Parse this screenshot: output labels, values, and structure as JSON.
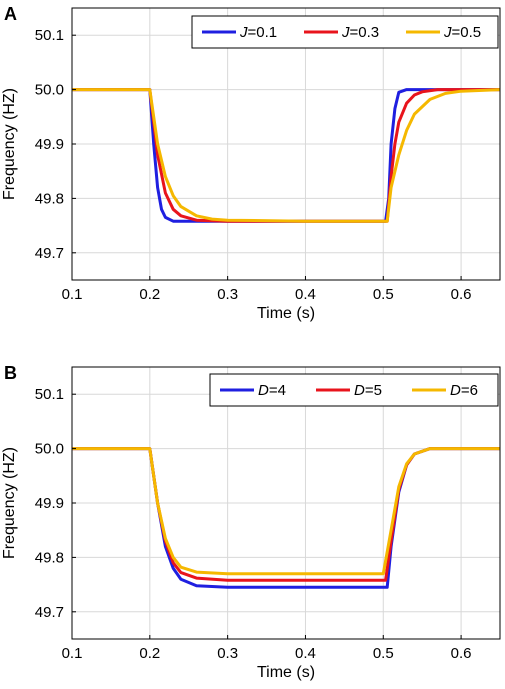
{
  "chart_data": [
    {
      "panel_label": "A",
      "type": "line",
      "xlabel": "Time (s)",
      "ylabel": "Frequency (HZ)",
      "xlim": [
        0.1,
        0.65
      ],
      "ylim": [
        49.65,
        50.15
      ],
      "xticks": [
        "0.1",
        "0.2",
        "0.3",
        "0.4",
        "0.5",
        "0.6"
      ],
      "yticks": [
        "49.7",
        "49.8",
        "49.9",
        "50.0",
        "50.1"
      ],
      "grid": true,
      "legend_position": "top-right",
      "series": [
        {
          "var": "J",
          "value": "=0.1",
          "color": "#1f1fe0",
          "x": [
            0.1,
            0.2,
            0.205,
            0.21,
            0.215,
            0.22,
            0.23,
            0.25,
            0.3,
            0.4,
            0.503,
            0.507,
            0.51,
            0.515,
            0.52,
            0.53,
            0.55,
            0.6,
            0.65
          ],
          "y": [
            50.0,
            50.0,
            49.9,
            49.82,
            49.78,
            49.765,
            49.758,
            49.758,
            49.758,
            49.758,
            49.758,
            49.8,
            49.9,
            49.965,
            49.995,
            50.0,
            50.0,
            50.0,
            50.0
          ]
        },
        {
          "var": "J",
          "value": "=0.3",
          "color": "#e8141c",
          "x": [
            0.1,
            0.2,
            0.205,
            0.21,
            0.22,
            0.23,
            0.24,
            0.26,
            0.3,
            0.4,
            0.505,
            0.51,
            0.515,
            0.52,
            0.53,
            0.54,
            0.55,
            0.57,
            0.6,
            0.65
          ],
          "y": [
            50.0,
            50.0,
            49.94,
            49.88,
            49.81,
            49.78,
            49.768,
            49.76,
            49.758,
            49.758,
            49.758,
            49.84,
            49.9,
            49.94,
            49.975,
            49.99,
            49.996,
            50.0,
            50.0,
            50.0
          ]
        },
        {
          "var": "J",
          "value": "=0.5",
          "color": "#f5b800",
          "x": [
            0.1,
            0.2,
            0.21,
            0.22,
            0.23,
            0.24,
            0.26,
            0.28,
            0.3,
            0.4,
            0.505,
            0.51,
            0.52,
            0.53,
            0.54,
            0.56,
            0.58,
            0.6,
            0.65
          ],
          "y": [
            50.0,
            50.0,
            49.9,
            49.84,
            49.805,
            49.785,
            49.768,
            49.762,
            49.76,
            49.758,
            49.758,
            49.82,
            49.88,
            49.925,
            49.955,
            49.982,
            49.993,
            49.997,
            50.0
          ]
        }
      ]
    },
    {
      "panel_label": "B",
      "type": "line",
      "xlabel": "Time (s)",
      "ylabel": "Frequency (HZ)",
      "xlim": [
        0.1,
        0.65
      ],
      "ylim": [
        49.65,
        50.15
      ],
      "xticks": [
        "0.1",
        "0.2",
        "0.3",
        "0.4",
        "0.5",
        "0.6"
      ],
      "yticks": [
        "49.7",
        "49.8",
        "49.9",
        "50.0",
        "50.1"
      ],
      "grid": true,
      "legend_position": "top-right",
      "series": [
        {
          "var": "D",
          "value": "=4",
          "color": "#1f1fe0",
          "x": [
            0.1,
            0.2,
            0.21,
            0.22,
            0.23,
            0.24,
            0.26,
            0.3,
            0.4,
            0.505,
            0.51,
            0.52,
            0.53,
            0.54,
            0.56,
            0.6,
            0.65
          ],
          "y": [
            50.0,
            50.0,
            49.9,
            49.82,
            49.78,
            49.76,
            49.748,
            49.745,
            49.745,
            49.745,
            49.82,
            49.92,
            49.97,
            49.99,
            50.0,
            50.0,
            50.0
          ]
        },
        {
          "var": "D",
          "value": "=5",
          "color": "#e8141c",
          "x": [
            0.1,
            0.2,
            0.21,
            0.22,
            0.23,
            0.24,
            0.26,
            0.3,
            0.4,
            0.503,
            0.51,
            0.52,
            0.53,
            0.54,
            0.56,
            0.6,
            0.65
          ],
          "y": [
            50.0,
            50.0,
            49.9,
            49.83,
            49.79,
            49.772,
            49.762,
            49.758,
            49.758,
            49.758,
            49.83,
            49.925,
            49.97,
            49.99,
            50.0,
            50.0,
            50.0
          ]
        },
        {
          "var": "D",
          "value": "=6",
          "color": "#f5b800",
          "x": [
            0.1,
            0.2,
            0.21,
            0.22,
            0.23,
            0.24,
            0.26,
            0.3,
            0.4,
            0.5,
            0.51,
            0.52,
            0.53,
            0.54,
            0.56,
            0.6,
            0.65
          ],
          "y": [
            50.0,
            50.0,
            49.9,
            49.835,
            49.8,
            49.782,
            49.773,
            49.77,
            49.77,
            49.77,
            49.85,
            49.93,
            49.972,
            49.99,
            50.0,
            50.0,
            50.0
          ]
        }
      ]
    }
  ]
}
